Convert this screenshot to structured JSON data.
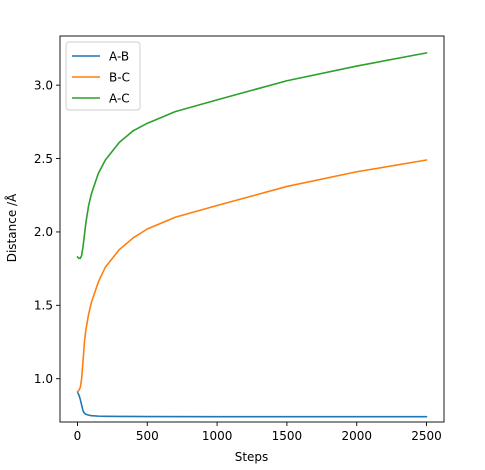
{
  "chart_data": {
    "type": "line",
    "title": "",
    "xlabel": "Steps",
    "ylabel": "Distance /Å",
    "xlim": [
      -125,
      2625
    ],
    "ylim": [
      0.705,
      3.335
    ],
    "xticks": [
      0,
      500,
      1000,
      1500,
      2000,
      2500
    ],
    "yticks": [
      1.0,
      1.5,
      2.0,
      2.5,
      3.0
    ],
    "xtick_labels": [
      "0",
      "500",
      "1000",
      "1500",
      "2000",
      "2500"
    ],
    "ytick_labels": [
      "1.0",
      "1.5",
      "2.0",
      "2.5",
      "3.0"
    ],
    "grid": false,
    "legend_position": "top-left",
    "series": [
      {
        "name": "A-B",
        "color": "#1f77b4",
        "x": [
          0,
          10,
          20,
          30,
          40,
          50,
          60,
          80,
          100,
          150,
          200,
          300,
          500,
          1000,
          1500,
          2000,
          2500
        ],
        "y": [
          0.91,
          0.89,
          0.86,
          0.82,
          0.78,
          0.765,
          0.758,
          0.752,
          0.748,
          0.745,
          0.744,
          0.743,
          0.742,
          0.741,
          0.741,
          0.741,
          0.741
        ]
      },
      {
        "name": "B-C",
        "color": "#ff7f0e",
        "x": [
          0,
          10,
          20,
          30,
          40,
          50,
          60,
          80,
          100,
          150,
          200,
          300,
          400,
          500,
          700,
          1000,
          1500,
          2000,
          2500
        ],
        "y": [
          0.91,
          0.92,
          0.94,
          1.0,
          1.12,
          1.25,
          1.33,
          1.44,
          1.52,
          1.66,
          1.76,
          1.88,
          1.96,
          2.02,
          2.1,
          2.18,
          2.31,
          2.41,
          2.49
        ]
      },
      {
        "name": "A-C",
        "color": "#2ca02c",
        "x": [
          0,
          10,
          20,
          30,
          40,
          50,
          60,
          80,
          100,
          150,
          200,
          300,
          400,
          500,
          700,
          1000,
          1500,
          2000,
          2500
        ],
        "y": [
          1.83,
          1.82,
          1.82,
          1.84,
          1.9,
          1.98,
          2.06,
          2.18,
          2.26,
          2.4,
          2.49,
          2.61,
          2.69,
          2.74,
          2.82,
          2.9,
          3.03,
          3.13,
          3.22
        ]
      }
    ]
  }
}
